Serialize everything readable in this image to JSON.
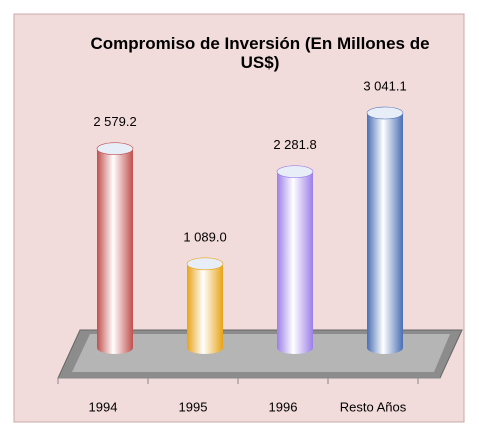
{
  "chart_data": {
    "type": "bar3d",
    "title": "Compromiso de Inversión (En Millones de US$)",
    "categories": [
      "1994",
      "1995",
      "1996",
      "Resto Años"
    ],
    "values": [
      2579.2,
      1089.0,
      2281.8,
      3041.1
    ],
    "value_labels": [
      "2 579.2",
      "1 089.0",
      "2 281.8",
      "3 041.1"
    ],
    "colors": [
      "#c0504d",
      "#e8a317",
      "#9b7fe8",
      "#4a6fb5"
    ]
  }
}
